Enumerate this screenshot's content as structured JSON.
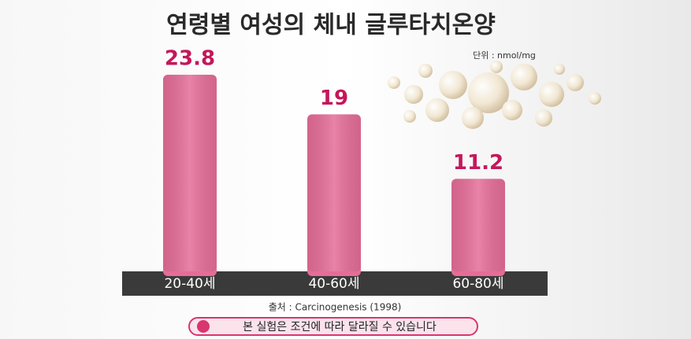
{
  "chart_data": {
    "type": "bar",
    "title": "연령별 여성의 체내 글루타치온양",
    "unit": "단위 : nmol/mg",
    "categories": [
      "20-40세",
      "40-60세",
      "60-80세"
    ],
    "values": [
      23.8,
      19,
      11.2
    ],
    "color": "#e56d98",
    "label_color": "#c4175a",
    "source": "출처 : Carcinogenesis (1998)",
    "note": "본 실험은 조건에 따라 달라질 수 있습니다"
  }
}
